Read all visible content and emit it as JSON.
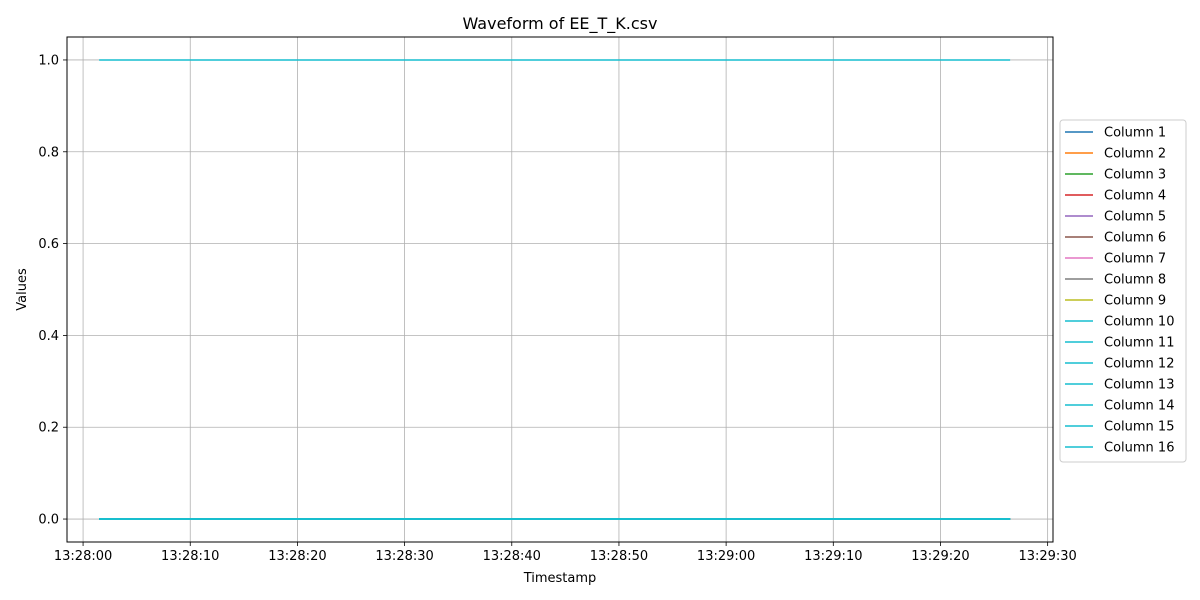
{
  "chart_data": {
    "type": "line",
    "title": "Waveform of EE_T_K.csv",
    "xlabel": "Timestamp",
    "ylabel": "Values",
    "x_ticks": [
      "13:28:00",
      "13:28:10",
      "13:28:20",
      "13:28:30",
      "13:28:40",
      "13:28:50",
      "13:29:00",
      "13:29:10",
      "13:29:20",
      "13:29:30"
    ],
    "y_ticks": [
      "0.0",
      "0.2",
      "0.4",
      "0.6",
      "0.8",
      "1.0"
    ],
    "x_range": [
      "13:27:58.5",
      "13:29:30.5"
    ],
    "ylim": [
      -0.05,
      1.05
    ],
    "grid": true,
    "legend_position": "right",
    "x": [
      "13:28:01.5",
      "13:29:26.5"
    ],
    "series": [
      {
        "name": "Column 1",
        "color": "#1f77b4",
        "values": [
          0,
          0
        ]
      },
      {
        "name": "Column 2",
        "color": "#ff7f0e",
        "values": [
          0,
          0
        ]
      },
      {
        "name": "Column 3",
        "color": "#2ca02c",
        "values": [
          0,
          0
        ]
      },
      {
        "name": "Column 4",
        "color": "#d62728",
        "values": [
          0,
          0
        ]
      },
      {
        "name": "Column 5",
        "color": "#9467bd",
        "values": [
          0,
          0
        ]
      },
      {
        "name": "Column 6",
        "color": "#8c564b",
        "values": [
          0,
          0
        ]
      },
      {
        "name": "Column 7",
        "color": "#e377c2",
        "values": [
          0,
          0
        ]
      },
      {
        "name": "Column 8",
        "color": "#7f7f7f",
        "values": [
          0,
          0
        ]
      },
      {
        "name": "Column 9",
        "color": "#bcbd22",
        "values": [
          0,
          0
        ]
      },
      {
        "name": "Column 10",
        "color": "#17becf",
        "values": [
          0,
          0
        ]
      },
      {
        "name": "Column 11",
        "color": "#17becf",
        "values": [
          0,
          0
        ]
      },
      {
        "name": "Column 12",
        "color": "#17becf",
        "values": [
          0,
          0
        ]
      },
      {
        "name": "Column 13",
        "color": "#17becf",
        "values": [
          0,
          0
        ]
      },
      {
        "name": "Column 14",
        "color": "#17becf",
        "values": [
          0,
          0
        ]
      },
      {
        "name": "Column 15",
        "color": "#17becf",
        "values": [
          0,
          0
        ]
      },
      {
        "name": "Column 16",
        "color": "#17becf",
        "values": [
          1,
          1
        ]
      }
    ]
  }
}
